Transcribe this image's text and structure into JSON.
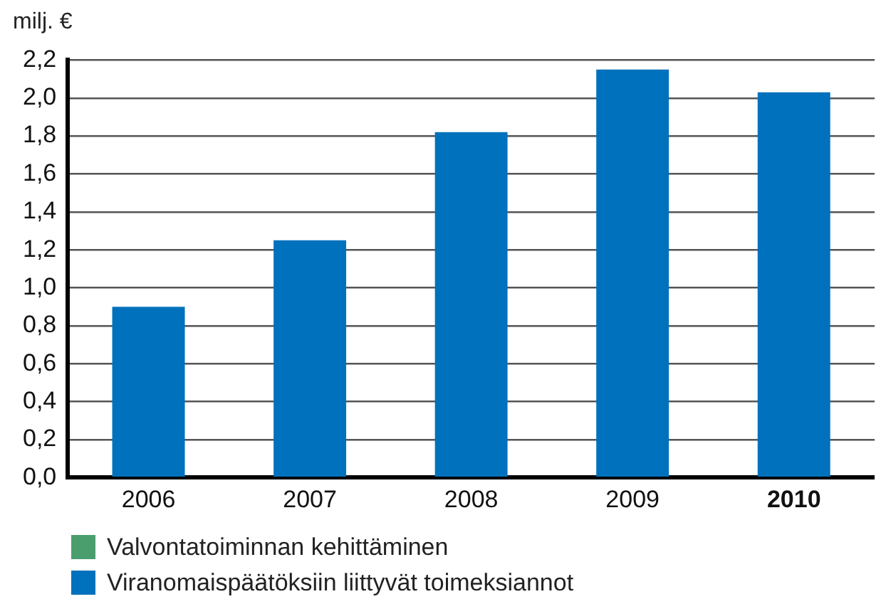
{
  "chart_data": {
    "type": "bar",
    "ylabel": "milj. €",
    "categories": [
      "2006",
      "2007",
      "2008",
      "2009",
      "2010"
    ],
    "stacked": true,
    "series": [
      {
        "name": "Valvontatoiminnan kehittäminen",
        "color": "#4a9e6e",
        "values": [
          null,
          null,
          null,
          null,
          null
        ]
      },
      {
        "name": "Viranomaispäätöksiin liittyvät toimeksiannot",
        "color": "#0071bc",
        "values": [
          0.9,
          1.25,
          1.82,
          2.15,
          2.03
        ]
      }
    ],
    "ylim": [
      0,
      2.2
    ],
    "yticks": [
      {
        "value": 0,
        "label": "0,0"
      },
      {
        "value": 0.2,
        "label": "0,2"
      },
      {
        "value": 0.4,
        "label": "0,4"
      },
      {
        "value": 0.6,
        "label": "0,6"
      },
      {
        "value": 0.8,
        "label": "0,8"
      },
      {
        "value": 1,
        "label": "1,0"
      },
      {
        "value": 1.2,
        "label": "1,2"
      },
      {
        "value": 1.4,
        "label": "1,4"
      },
      {
        "value": 1.6,
        "label": "1,6"
      },
      {
        "value": 1.8,
        "label": "1,8"
      },
      {
        "value": 2,
        "label": "2,0"
      },
      {
        "value": 2.2,
        "label": "2,2"
      }
    ],
    "grid": "y",
    "legend": "bottom left"
  }
}
